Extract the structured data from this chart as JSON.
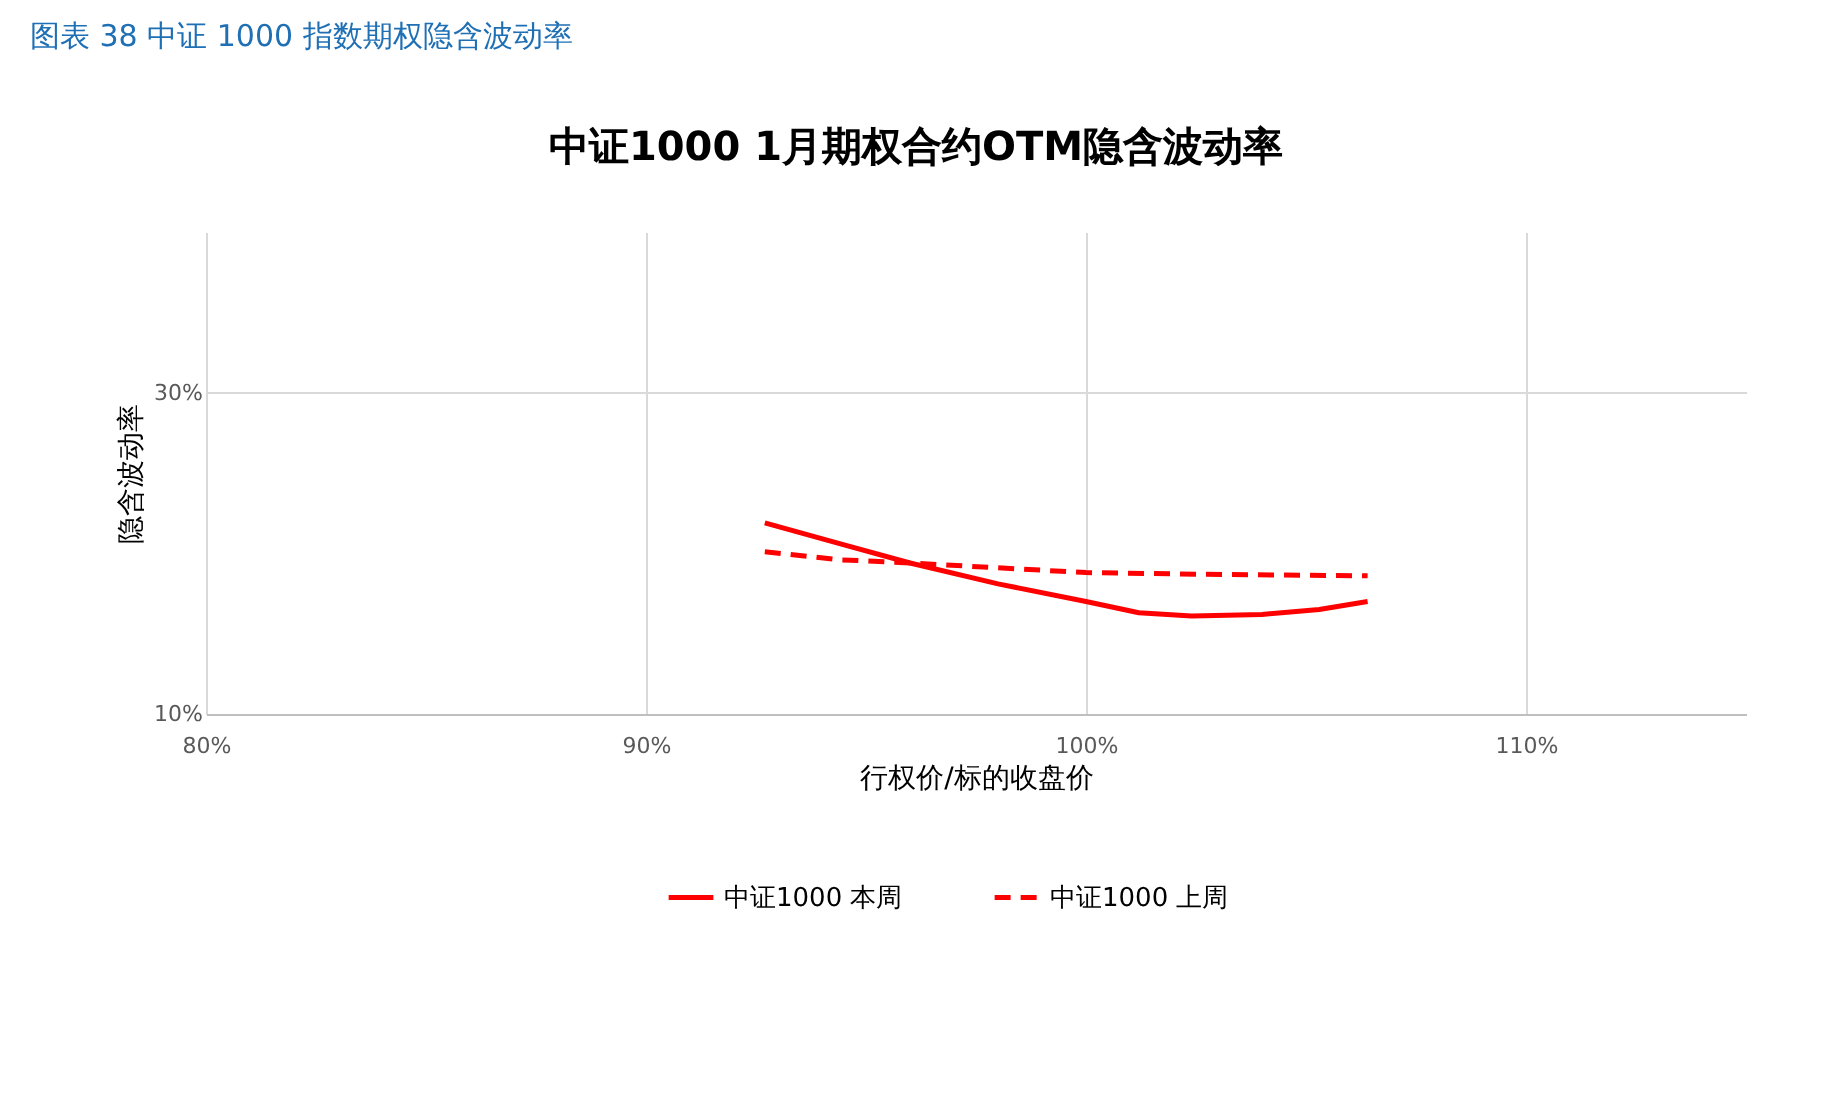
{
  "chart_data": {
    "type": "line",
    "title": "图表 38 中证 1000 指数期权隐含波动率",
    "subtitle": "中证1000 1月期权合约OTM隐含波动率",
    "xlabel": "行权价/标的收盘价",
    "ylabel": "隐含波动率",
    "xlim": [
      80,
      115
    ],
    "xticks": [
      {
        "value": 80,
        "label": "80%"
      },
      {
        "value": 90,
        "label": "90%"
      },
      {
        "value": 100,
        "label": "100%"
      },
      {
        "value": 110,
        "label": "110%"
      }
    ],
    "ylim": [
      10,
      40
    ],
    "yticks": [
      {
        "value": 10,
        "label": "10%"
      },
      {
        "value": 30,
        "label": "30%"
      }
    ],
    "grid": true,
    "legend": "bottom",
    "marker": "none",
    "series": [
      {
        "name": "中证1000 本周",
        "color": "#ff0000",
        "line_style": "solid",
        "x": [
          92.7,
          94.4,
          96.0,
          98.0,
          100.0,
          101.2,
          102.4,
          104.0,
          105.3,
          106.4
        ],
        "values": [
          21.9,
          20.6,
          19.4,
          18.1,
          17.0,
          16.3,
          16.1,
          16.2,
          16.5,
          17.0
        ]
      },
      {
        "name": "中证1000 上周",
        "color": "#ff0000",
        "line_style": "dashed",
        "x": [
          92.7,
          94.4,
          96.0,
          98.0,
          100.0,
          102.6,
          106.4
        ],
        "values": [
          20.1,
          19.6,
          19.4,
          19.1,
          18.8,
          18.7,
          18.6
        ]
      }
    ]
  }
}
